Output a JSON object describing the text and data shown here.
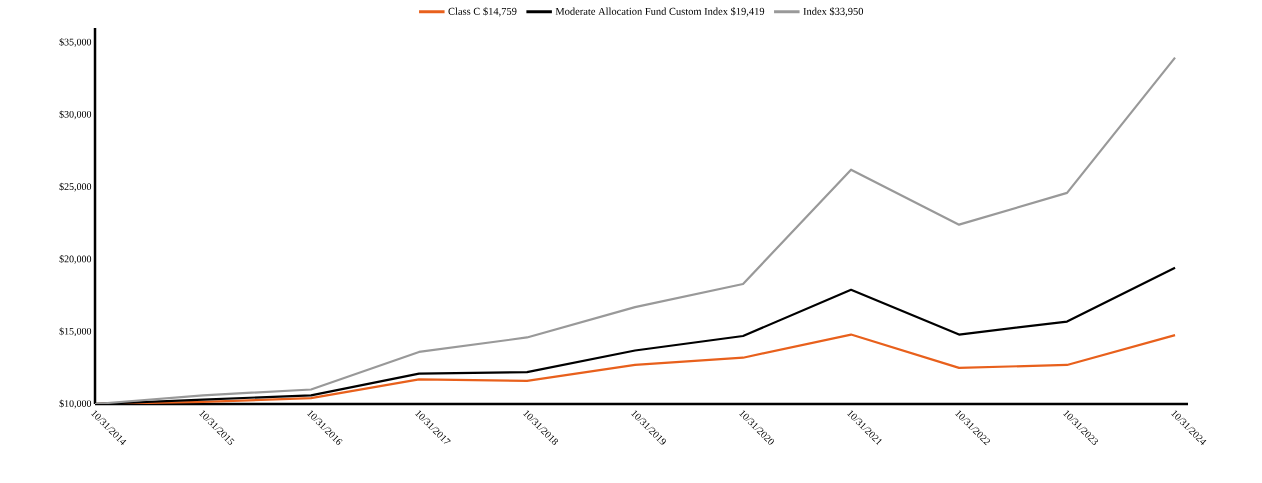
{
  "chart_data": {
    "type": "line",
    "categories": [
      "10/31/2014",
      "10/31/2015",
      "10/31/2016",
      "10/31/2017",
      "10/31/2018",
      "10/31/2019",
      "10/31/2020",
      "10/31/2021",
      "10/31/2022",
      "10/31/2023",
      "10/31/2024"
    ],
    "series": [
      {
        "name": "Class C $14,759",
        "color": "#e8601c",
        "values": [
          10000,
          10150,
          10400,
          11700,
          11600,
          12700,
          13200,
          14800,
          12500,
          12700,
          14759
        ]
      },
      {
        "name": "Moderate Allocation Fund Custom Index $19,419",
        "color": "#000000",
        "values": [
          10000,
          10300,
          10600,
          12100,
          12200,
          13700,
          14700,
          17900,
          14800,
          15700,
          19419
        ]
      },
      {
        "name": "Index $33,950",
        "color": "#999999",
        "values": [
          10000,
          10600,
          11000,
          13600,
          14600,
          16700,
          18300,
          26200,
          22400,
          24600,
          33950
        ]
      }
    ],
    "ylim": [
      10000,
      36000
    ],
    "yticks": [
      {
        "value": 10000,
        "label": "$10,000"
      },
      {
        "value": 15000,
        "label": "$15,000"
      },
      {
        "value": 20000,
        "label": "$20,000"
      },
      {
        "value": 25000,
        "label": "$25,000"
      },
      {
        "value": 30000,
        "label": "$30,000"
      },
      {
        "value": 35000,
        "label": "$35,000"
      }
    ],
    "legend": "top",
    "grid": false,
    "marker": "none",
    "line_style": "solid"
  }
}
